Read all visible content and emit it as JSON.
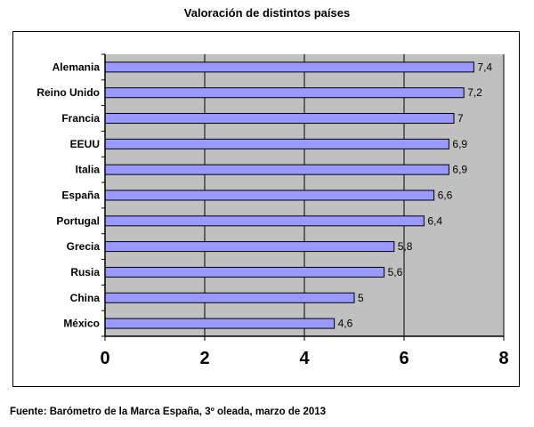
{
  "chart_data": {
    "type": "bar",
    "orientation": "horizontal",
    "title": "Valoración de distintos países",
    "categories": [
      "Alemania",
      "Reino Unido",
      "Francia",
      "EEUU",
      "Italia",
      "España",
      "Portugal",
      "Grecia",
      "Rusia",
      "China",
      "México"
    ],
    "values": [
      7.4,
      7.2,
      7,
      6.9,
      6.9,
      6.6,
      6.4,
      5.8,
      5.6,
      5,
      4.6
    ],
    "value_labels": [
      "7,4",
      "7,2",
      "7",
      "6,9",
      "6,9",
      "6,6",
      "6,4",
      "5,8",
      "5,6",
      "5",
      "4,6"
    ],
    "xlim": [
      0,
      8
    ],
    "x_ticks": [
      "0",
      "2",
      "4",
      "6",
      "8"
    ],
    "xlabel": "",
    "ylabel": "",
    "grid": "vertical",
    "legend": "none",
    "colors": {
      "bar": "#9999ff",
      "bar_outline": "#000000",
      "plot_background": "#c0c0c0"
    }
  },
  "source_note": "Fuente: Barómetro de la Marca España, 3º oleada, marzo de 2013"
}
